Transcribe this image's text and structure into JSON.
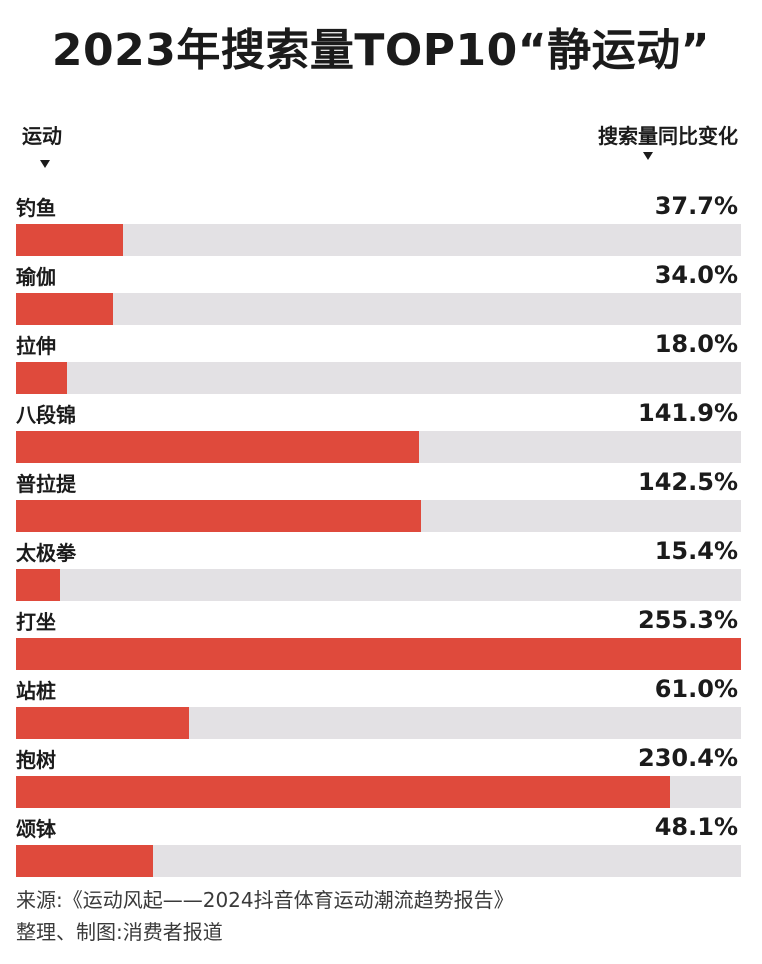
{
  "header": {
    "title": "2023年搜索量TOP10“静运动”",
    "left_column": "运动",
    "right_column": "搜索量同比变化"
  },
  "chart_data": {
    "type": "bar",
    "title": "2023年搜索量TOP10“静运动”",
    "xlabel": "运动",
    "ylabel": "搜索量同比变化",
    "orientation": "horizontal",
    "unit": "%",
    "xlim": [
      0,
      255.3
    ],
    "categories": [
      "钓鱼",
      "瑜伽",
      "拉伸",
      "八段锦",
      "普拉提",
      "太极拳",
      "打坐",
      "站桩",
      "抱树",
      "颂钵"
    ],
    "values": [
      37.7,
      34.0,
      18.0,
      141.9,
      142.5,
      15.4,
      255.3,
      61.0,
      230.4,
      48.1
    ],
    "value_labels": [
      "37.7%",
      "34.0%",
      "18.0%",
      "141.9%",
      "142.5%",
      "15.4%",
      "255.3%",
      "61.0%",
      "230.4%",
      "48.1%"
    ],
    "colors": {
      "bar": "#df4a3c",
      "track": "#e3e1e4",
      "text": "#1b1b1b"
    }
  },
  "footer": {
    "source": "来源:《运动风起——2024抖音体育运动潮流趋势报告》",
    "credit": "整理、制图:消费者报道"
  }
}
